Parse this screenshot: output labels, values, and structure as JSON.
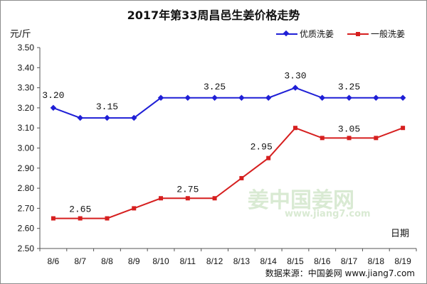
{
  "chart_data": {
    "type": "line",
    "title": "2017年第33周昌邑生姜价格走势",
    "ylabel": "元/斤",
    "xlabel": "日期",
    "categories": [
      "8/6",
      "8/7",
      "8/8",
      "8/9",
      "8/10",
      "8/11",
      "8/12",
      "8/13",
      "8/14",
      "8/15",
      "8/16",
      "8/17",
      "8/18",
      "8/19"
    ],
    "ylim": [
      2.5,
      3.5
    ],
    "yticks": [
      "2.50",
      "2.60",
      "2.70",
      "2.80",
      "2.90",
      "3.00",
      "3.10",
      "3.20",
      "3.30",
      "3.40",
      "3.50"
    ],
    "grid": false,
    "legend_position": "top-right",
    "series": [
      {
        "name": "优质洗姜",
        "color": "#1f1fd6",
        "marker": "diamond",
        "values": [
          3.2,
          3.15,
          3.15,
          3.15,
          3.25,
          3.25,
          3.25,
          3.25,
          3.25,
          3.3,
          3.25,
          3.25,
          3.25,
          3.25
        ]
      },
      {
        "name": "一般洗姜",
        "color": "#d61f1f",
        "marker": "square",
        "values": [
          2.65,
          2.65,
          2.65,
          2.7,
          2.75,
          2.75,
          2.75,
          2.85,
          2.95,
          3.1,
          3.05,
          3.05,
          3.05,
          3.1
        ]
      }
    ],
    "annotations": [
      {
        "series": 0,
        "index": 0,
        "text": "3.20"
      },
      {
        "series": 0,
        "index": 2,
        "text": "3.15"
      },
      {
        "series": 0,
        "index": 6,
        "text": "3.25"
      },
      {
        "series": 0,
        "index": 9,
        "text": "3.30"
      },
      {
        "series": 0,
        "index": 11,
        "text": "3.25"
      },
      {
        "series": 1,
        "index": 1,
        "text": "2.65"
      },
      {
        "series": 1,
        "index": 5,
        "text": "2.75"
      },
      {
        "series": 1,
        "index": 8,
        "text": "2.95"
      },
      {
        "series": 1,
        "index": 11,
        "text": "3.05"
      }
    ]
  },
  "watermark": {
    "logo_text": "姜中国姜网",
    "url": "www.jiang7.com"
  },
  "source_text": "数据来源：中国姜网 www.jiang7.com"
}
